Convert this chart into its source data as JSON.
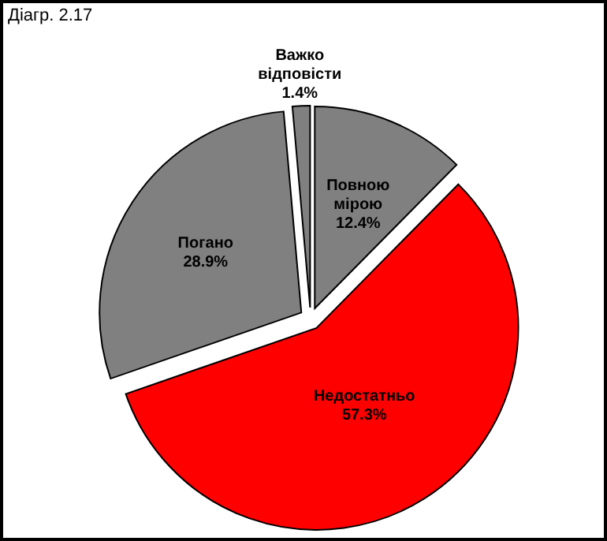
{
  "chart_data": {
    "type": "pie",
    "title": "Діагр. 2.17",
    "categories": [
      "Повною мірою",
      "Недостатньо",
      "Погано",
      "Важко відповісти"
    ],
    "values": [
      12.4,
      57.3,
      28.9,
      1.4
    ],
    "colors": [
      "#808080",
      "#ff0000",
      "#808080",
      "#808080"
    ],
    "value_labels": [
      "12.4%",
      "57.3%",
      "28.9%",
      "1.4%"
    ]
  }
}
